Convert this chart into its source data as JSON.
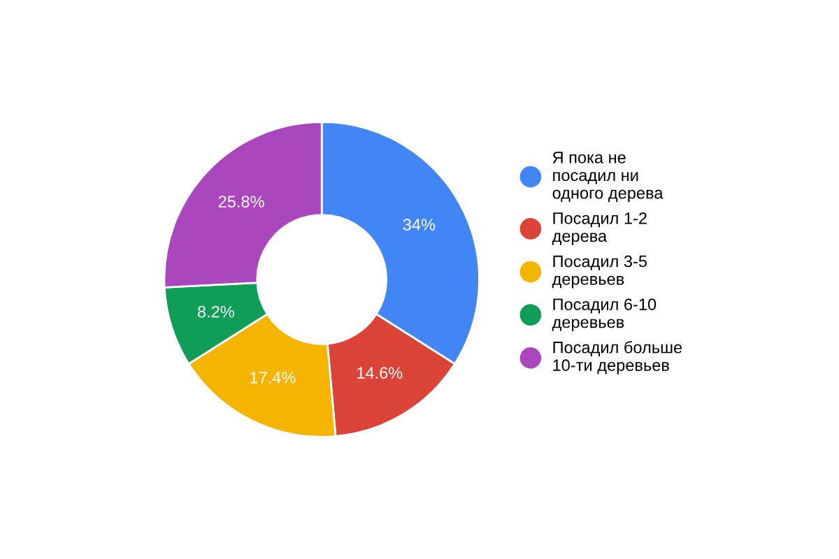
{
  "chart_data": {
    "type": "donut",
    "categories": [
      "Я пока не\nпосадил ни\nодного дерева",
      "Посадил 1-2\nдерева",
      "Посадил 3-5\nдеревьев",
      "Посадил 6-10\nдеревьев",
      "Посадил больше\n10-ти деревьев"
    ],
    "values": [
      34,
      14.6,
      17.4,
      8.2,
      25.8
    ],
    "value_labels": [
      "34%",
      "14.6%",
      "17.4%",
      "8.2%",
      "25.8%"
    ],
    "colors": [
      "#4285f4",
      "#db4437",
      "#f4b400",
      "#0f9d58",
      "#ab47bc"
    ],
    "legend": "right"
  }
}
